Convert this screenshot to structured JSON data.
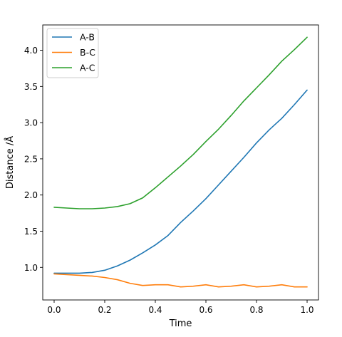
{
  "chart_data": {
    "type": "line",
    "title": "",
    "xlabel": "Time",
    "ylabel": "Distance /Å",
    "xlim": [
      -0.045,
      1.045
    ],
    "ylim": [
      0.55,
      4.35
    ],
    "xticks": [
      0.0,
      0.2,
      0.4,
      0.6,
      0.8,
      1.0
    ],
    "xtick_labels": [
      "0.0",
      "0.2",
      "0.4",
      "0.6",
      "0.8",
      "1.0"
    ],
    "yticks": [
      1.0,
      1.5,
      2.0,
      2.5,
      3.0,
      3.5,
      4.0
    ],
    "ytick_labels": [
      "1.0",
      "1.5",
      "2.0",
      "2.5",
      "3.0",
      "3.5",
      "4.0"
    ],
    "grid": false,
    "legend_position": "top-left",
    "series": [
      {
        "name": "A-B",
        "color": "#1f77b4",
        "x": [
          0.0,
          0.05,
          0.1,
          0.15,
          0.2,
          0.25,
          0.3,
          0.35,
          0.4,
          0.45,
          0.5,
          0.55,
          0.6,
          0.65,
          0.7,
          0.75,
          0.8,
          0.85,
          0.9,
          0.95,
          1.0
        ],
        "y": [
          0.92,
          0.92,
          0.92,
          0.93,
          0.96,
          1.02,
          1.1,
          1.2,
          1.31,
          1.44,
          1.62,
          1.78,
          1.95,
          2.14,
          2.33,
          2.52,
          2.72,
          2.9,
          3.06,
          3.25,
          3.45
        ]
      },
      {
        "name": "B-C",
        "color": "#ff7f0e",
        "x": [
          0.0,
          0.05,
          0.1,
          0.15,
          0.2,
          0.25,
          0.3,
          0.35,
          0.4,
          0.45,
          0.5,
          0.55,
          0.6,
          0.65,
          0.7,
          0.75,
          0.8,
          0.85,
          0.9,
          0.95,
          1.0
        ],
        "y": [
          0.91,
          0.9,
          0.89,
          0.88,
          0.86,
          0.83,
          0.78,
          0.75,
          0.76,
          0.76,
          0.73,
          0.74,
          0.76,
          0.73,
          0.74,
          0.76,
          0.73,
          0.74,
          0.76,
          0.73,
          0.73
        ]
      },
      {
        "name": "A-C",
        "color": "#2ca02c",
        "x": [
          0.0,
          0.05,
          0.1,
          0.15,
          0.2,
          0.25,
          0.3,
          0.35,
          0.4,
          0.45,
          0.5,
          0.55,
          0.6,
          0.65,
          0.7,
          0.75,
          0.8,
          0.85,
          0.9,
          0.95,
          1.0
        ],
        "y": [
          1.83,
          1.82,
          1.81,
          1.81,
          1.82,
          1.84,
          1.88,
          1.96,
          2.1,
          2.25,
          2.4,
          2.56,
          2.74,
          2.91,
          3.1,
          3.3,
          3.48,
          3.66,
          3.85,
          4.01,
          4.18
        ]
      }
    ]
  }
}
